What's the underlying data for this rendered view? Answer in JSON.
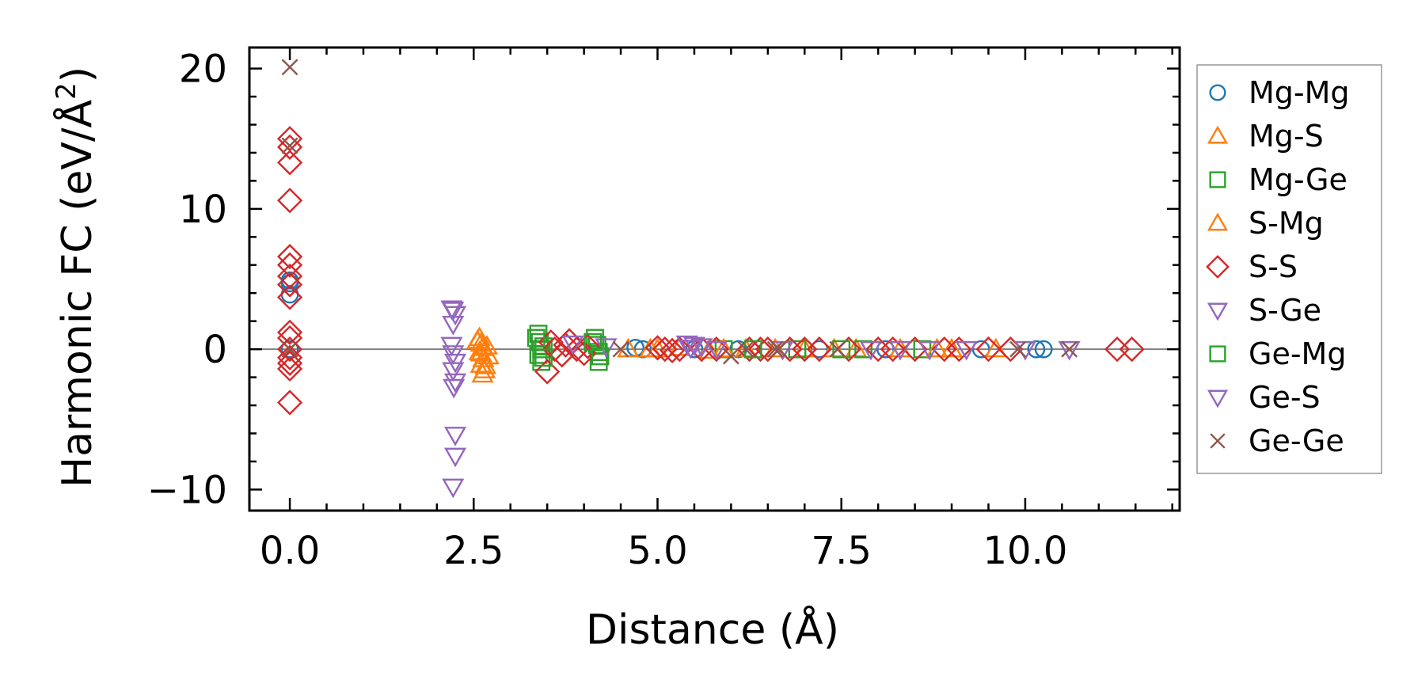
{
  "chart_data": {
    "type": "scatter",
    "title": "",
    "xlabel": "Distance (Å)",
    "ylabel_main": "Harmonic FC (eV/Å",
    "ylabel_sup": "2",
    "ylabel_close": ")",
    "xlim": [
      -0.55,
      12.1
    ],
    "ylim": [
      -11.5,
      21.5
    ],
    "xticks": [
      0.0,
      2.5,
      5.0,
      7.5,
      10.0
    ],
    "xtick_labels": [
      "0.0",
      "2.5",
      "5.0",
      "7.5",
      "10.0"
    ],
    "yticks": [
      -10,
      0,
      10,
      20
    ],
    "ytick_labels": [
      "−10",
      "0",
      "10",
      "20"
    ],
    "hline": 0,
    "legend_position": "outside-right",
    "series": [
      {
        "name": "Mg-Mg",
        "marker": "circle",
        "color": "#1f77b4",
        "points": [
          [
            0.0,
            4.9
          ],
          [
            0.0,
            4.7
          ],
          [
            0.0,
            3.9
          ],
          [
            0.0,
            0.0
          ],
          [
            4.7,
            0.1
          ],
          [
            4.8,
            0.0
          ],
          [
            5.5,
            0.0
          ],
          [
            6.1,
            0.0
          ],
          [
            7.2,
            0.0
          ],
          [
            8.1,
            0.0
          ],
          [
            9.4,
            0.0
          ],
          [
            10.15,
            0.0
          ],
          [
            10.25,
            0.0
          ]
        ]
      },
      {
        "name": "Mg-S",
        "marker": "triangle-up",
        "color": "#ff7f0e",
        "points": [
          [
            2.58,
            0.8
          ],
          [
            2.6,
            0.4
          ],
          [
            2.62,
            0.1
          ],
          [
            2.6,
            -0.3
          ],
          [
            2.63,
            -0.7
          ],
          [
            2.6,
            -1.1
          ],
          [
            2.65,
            -1.5
          ],
          [
            2.62,
            -1.8
          ],
          [
            2.68,
            0.2
          ],
          [
            2.7,
            -0.5
          ],
          [
            4.9,
            0.0
          ],
          [
            5.3,
            0.1
          ],
          [
            5.7,
            -0.1
          ],
          [
            6.2,
            0.0
          ],
          [
            7.0,
            0.0
          ],
          [
            7.7,
            0.0
          ],
          [
            8.3,
            0.0
          ],
          [
            9.0,
            0.0
          ],
          [
            9.6,
            0.0
          ]
        ]
      },
      {
        "name": "Mg-Ge",
        "marker": "square",
        "color": "#2ca02c",
        "points": [
          [
            3.38,
            1.1
          ],
          [
            3.4,
            0.5
          ],
          [
            3.42,
            0.0
          ],
          [
            3.38,
            -0.4
          ],
          [
            3.42,
            -0.9
          ],
          [
            3.45,
            0.2
          ],
          [
            4.15,
            0.8
          ],
          [
            4.18,
            0.3
          ],
          [
            4.2,
            -0.2
          ],
          [
            4.2,
            -0.9
          ],
          [
            5.9,
            0.0
          ],
          [
            6.9,
            0.0
          ],
          [
            7.8,
            0.0
          ],
          [
            8.6,
            0.0
          ]
        ]
      },
      {
        "name": "S-Mg",
        "marker": "triangle-up",
        "color": "#ff7f0e",
        "points": [
          [
            2.55,
            0.6
          ],
          [
            2.58,
            -0.2
          ],
          [
            2.66,
            -1.2
          ],
          [
            4.6,
            0.0
          ],
          [
            5.0,
            0.0
          ],
          [
            5.9,
            0.0
          ],
          [
            6.6,
            0.0
          ],
          [
            7.4,
            0.0
          ],
          [
            8.8,
            0.0
          ]
        ]
      },
      {
        "name": "S-S",
        "marker": "diamond",
        "color": "#d62728",
        "points": [
          [
            0.0,
            15.0
          ],
          [
            0.0,
            14.4
          ],
          [
            0.0,
            13.3
          ],
          [
            0.0,
            10.6
          ],
          [
            0.0,
            6.6
          ],
          [
            0.0,
            6.0
          ],
          [
            0.0,
            5.2
          ],
          [
            0.0,
            4.6
          ],
          [
            0.0,
            3.7
          ],
          [
            0.0,
            1.2
          ],
          [
            0.0,
            0.8
          ],
          [
            0.0,
            0.0
          ],
          [
            0.0,
            -0.6
          ],
          [
            0.0,
            -1.0
          ],
          [
            0.0,
            -1.4
          ],
          [
            0.0,
            -3.8
          ],
          [
            3.5,
            -1.6
          ],
          [
            3.55,
            0.5
          ],
          [
            3.6,
            0.0
          ],
          [
            3.7,
            -0.4
          ],
          [
            3.75,
            0.3
          ],
          [
            3.8,
            0.6
          ],
          [
            3.9,
            0.0
          ],
          [
            4.0,
            -0.3
          ],
          [
            4.05,
            0.2
          ],
          [
            5.0,
            0.1
          ],
          [
            5.1,
            0.0
          ],
          [
            5.2,
            -0.1
          ],
          [
            5.3,
            0.0
          ],
          [
            5.6,
            0.0
          ],
          [
            5.8,
            0.0
          ],
          [
            6.25,
            0.0
          ],
          [
            6.4,
            0.0
          ],
          [
            6.5,
            0.0
          ],
          [
            6.8,
            0.0
          ],
          [
            7.0,
            0.0
          ],
          [
            7.2,
            0.0
          ],
          [
            7.6,
            0.0
          ],
          [
            8.0,
            0.0
          ],
          [
            8.2,
            0.0
          ],
          [
            8.5,
            0.0
          ],
          [
            8.9,
            0.0
          ],
          [
            9.1,
            0.0
          ],
          [
            9.5,
            0.0
          ],
          [
            9.8,
            0.0
          ],
          [
            11.25,
            0.0
          ],
          [
            11.45,
            0.0
          ]
        ]
      },
      {
        "name": "S-Ge",
        "marker": "triangle-down",
        "color": "#9467bd",
        "points": [
          [
            2.22,
            2.8
          ],
          [
            2.25,
            2.5
          ],
          [
            2.22,
            1.8
          ],
          [
            2.2,
            0.3
          ],
          [
            2.22,
            -0.3
          ],
          [
            2.25,
            -0.9
          ],
          [
            2.22,
            -1.5
          ],
          [
            2.25,
            -2.3
          ],
          [
            2.25,
            -6.1
          ],
          [
            2.25,
            -7.6
          ],
          [
            2.22,
            -9.8
          ],
          [
            3.85,
            0.4
          ],
          [
            4.3,
            0.2
          ],
          [
            5.4,
            0.4
          ],
          [
            5.5,
            0.3
          ],
          [
            5.6,
            0.2
          ]
        ]
      },
      {
        "name": "Ge-Mg",
        "marker": "square",
        "color": "#2ca02c",
        "points": [
          [
            3.35,
            0.8
          ],
          [
            3.45,
            -0.6
          ],
          [
            4.12,
            0.5
          ],
          [
            4.22,
            -0.5
          ],
          [
            6.3,
            0.0
          ],
          [
            7.5,
            0.0
          ]
        ]
      },
      {
        "name": "Ge-S",
        "marker": "triangle-down",
        "color": "#9467bd",
        "points": [
          [
            2.2,
            2.9
          ],
          [
            2.23,
            -2.7
          ],
          [
            5.45,
            0.1
          ],
          [
            5.8,
            0.0
          ],
          [
            6.7,
            0.0
          ],
          [
            7.9,
            0.0
          ],
          [
            8.3,
            0.0
          ],
          [
            8.7,
            0.0
          ],
          [
            9.2,
            0.0
          ],
          [
            10.0,
            0.0
          ],
          [
            10.6,
            0.0
          ]
        ]
      },
      {
        "name": "Ge-Ge",
        "marker": "x",
        "color": "#8c564b",
        "points": [
          [
            0.0,
            20.1
          ],
          [
            0.0,
            14.5
          ],
          [
            0.0,
            0.0
          ],
          [
            4.5,
            0.0
          ],
          [
            6.0,
            -0.5
          ],
          [
            6.2,
            0.0
          ],
          [
            6.6,
            0.0
          ],
          [
            6.65,
            0.0
          ],
          [
            7.45,
            0.0
          ],
          [
            9.9,
            0.0
          ],
          [
            10.6,
            0.0
          ]
        ]
      }
    ]
  }
}
